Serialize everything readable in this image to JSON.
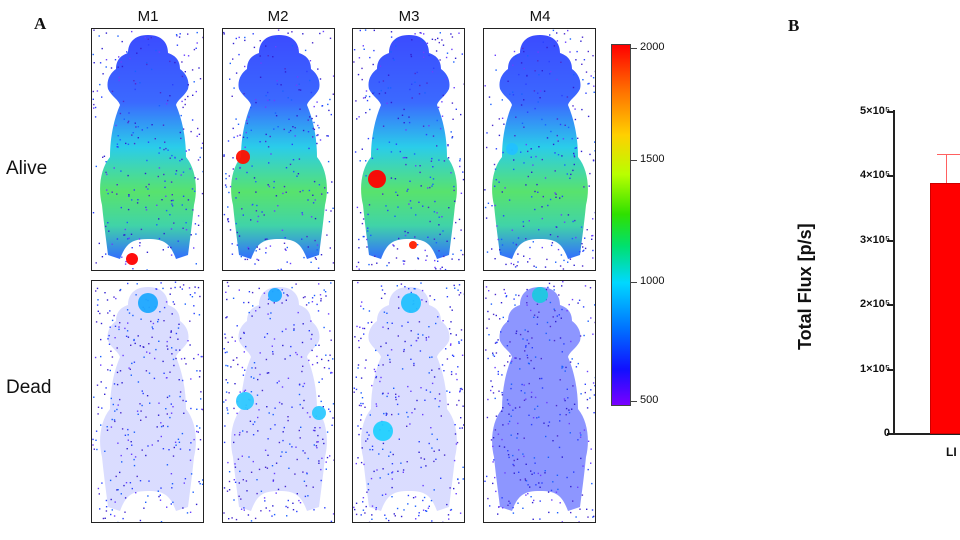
{
  "panels": {
    "a": "A",
    "b": "B"
  },
  "columns": [
    "M1",
    "M2",
    "M3",
    "M4"
  ],
  "rows": [
    "Alive",
    "Dead"
  ],
  "colorbar": {
    "labels": [
      "2000",
      "1500",
      "1000",
      "500"
    ]
  },
  "chart_data": {
    "type": "bar",
    "ylabel": "Total Flux [p/s]",
    "y_tick_labels": [
      "5×10⁵",
      "4×10⁵",
      "3×10⁵",
      "2×10⁵",
      "1×10⁵",
      "0"
    ],
    "ylim": [
      0,
      500000
    ],
    "categories": [
      "LI"
    ],
    "values": [
      390000
    ],
    "error_upper": [
      435000
    ],
    "colors": [
      "#ff0000"
    ]
  }
}
